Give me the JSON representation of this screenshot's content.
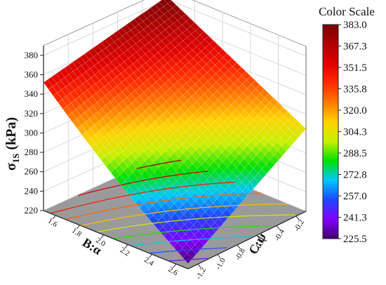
{
  "chart_data": {
    "type": "surface3d",
    "z_axis": {
      "label": "σ",
      "label_sub": "1S",
      "label_unit": " (kPa)",
      "range": [
        220,
        390
      ],
      "ticks": [
        "220",
        "240",
        "260",
        "280",
        "300",
        "320",
        "340",
        "360",
        "380"
      ]
    },
    "x_axis": {
      "label": "B:α",
      "range": [
        1.5,
        2.7
      ],
      "ticks": [
        "1.6",
        "1.8",
        "2.0",
        "2.2",
        "2.4",
        "2.6"
      ]
    },
    "y_axis": {
      "label": "C:ψ",
      "range": [
        -1.3,
        -0.1
      ],
      "ticks": [
        "-0.2",
        "-0.4",
        "-0.6",
        "-0.8",
        "-1.0",
        "-1.2"
      ]
    },
    "surface_corners": [
      {
        "alpha": 1.5,
        "psi": -1.3,
        "sigma": 352
      },
      {
        "alpha": 1.5,
        "psi": -0.1,
        "sigma": 383
      },
      {
        "alpha": 2.7,
        "psi": -0.1,
        "sigma": 305
      },
      {
        "alpha": 2.7,
        "psi": -1.3,
        "sigma": 225.5
      }
    ],
    "colorbar": {
      "title": "Color Scale",
      "labels": [
        "383.0",
        "367.3",
        "351.5",
        "335.8",
        "320.0",
        "304.3",
        "288.5",
        "272.8",
        "257.0",
        "241.3",
        "225.5"
      ],
      "colors": [
        "#7a0000",
        "#b00000",
        "#e00000",
        "#ff2a00",
        "#ff7a00",
        "#ffd200",
        "#c8f000",
        "#00e000",
        "#00c8ff",
        "#1e46ff",
        "#8000ff",
        "#40006e"
      ]
    }
  }
}
